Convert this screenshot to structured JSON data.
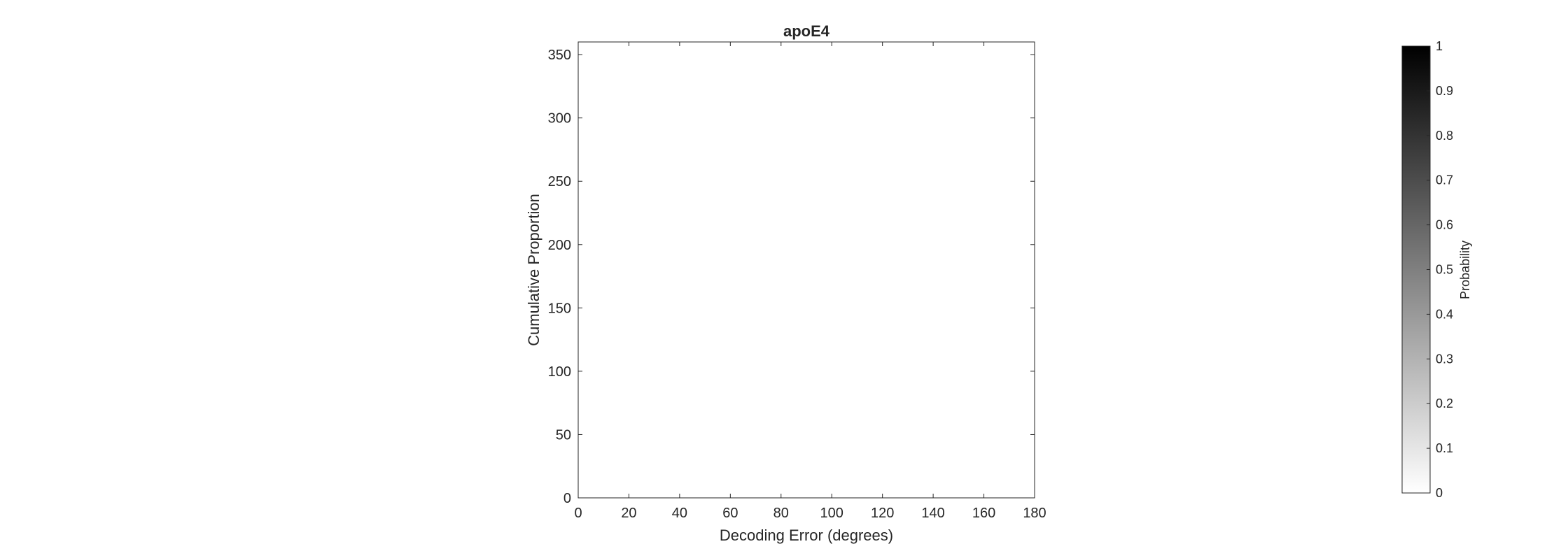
{
  "chart_data": {
    "type": "heatmap",
    "title": "apoE4",
    "xlabel": "Decoding Error (degrees)",
    "ylabel": "Cumulative Proportion",
    "xlim": [
      0,
      180
    ],
    "ylim": [
      0,
      360
    ],
    "xticks": [
      0,
      20,
      40,
      60,
      80,
      100,
      120,
      140,
      160,
      180
    ],
    "yticks": [
      0,
      50,
      100,
      150,
      200,
      250,
      300,
      350
    ],
    "values": [],
    "colorbar": {
      "label": "Probability",
      "limits": [
        0,
        1
      ],
      "ticks": [
        0,
        0.1,
        0.2,
        0.3,
        0.4,
        0.5,
        0.6,
        0.7,
        0.8,
        0.9,
        1
      ],
      "colormap": "gray-reversed",
      "color_low": "#ffffff",
      "color_high": "#000000"
    }
  }
}
